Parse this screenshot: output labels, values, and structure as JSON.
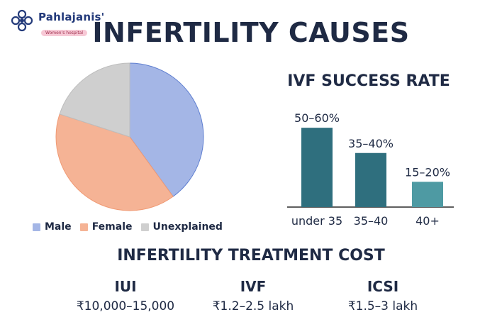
{
  "brand": {
    "name": "Pahlajanis'",
    "tagline": "Women's hospital",
    "logo_icon": "flower-lattice-icon",
    "color": "#233a7a"
  },
  "title": "INFERTILITY CAUSES",
  "chart_data": [
    {
      "type": "pie",
      "title": "",
      "labels": [
        "Male",
        "Female",
        "Unexplained"
      ],
      "values": [
        40,
        40,
        20
      ],
      "colors": [
        "#a4b6e6",
        "#f5b395",
        "#cfcfcf"
      ],
      "legend_position": "bottom"
    },
    {
      "type": "bar",
      "title": "IVF SUCCESS RATE",
      "categories": [
        "under 35",
        "35–40",
        "40+"
      ],
      "values": [
        55,
        37.5,
        17.5
      ],
      "data_labels": [
        "50–60%",
        "35–40%",
        "15–20%"
      ],
      "colors": [
        "#2f6f7e",
        "#2f6f7e",
        "#4e9aa3"
      ],
      "ylim": [
        0,
        60
      ],
      "grid": false
    }
  ],
  "cost": {
    "title": "INFERTILITY TREATMENT COST",
    "items": [
      {
        "label": "IUI",
        "value": "₹10,000–15,000"
      },
      {
        "label": "IVF",
        "value": "₹1.2–2.5 lakh"
      },
      {
        "label": "ICSI",
        "value": "₹1.5–3 lakh"
      }
    ]
  }
}
